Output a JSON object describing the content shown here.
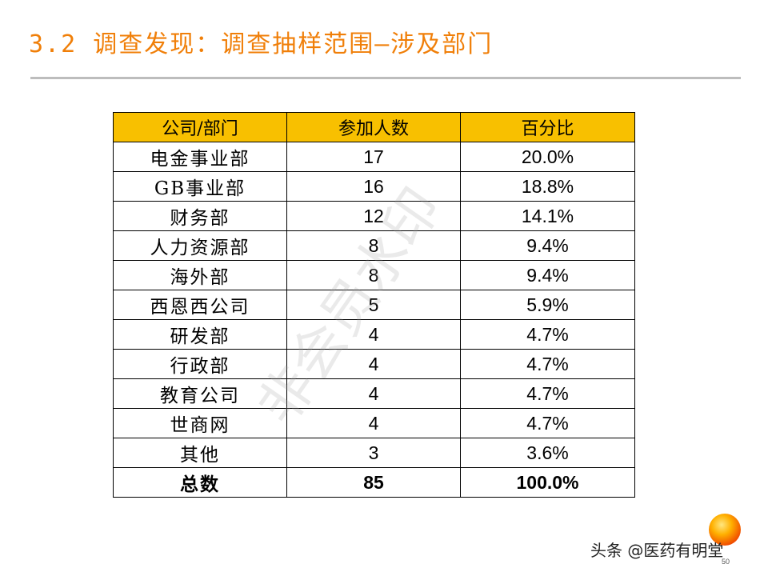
{
  "slide": {
    "title": "3.2 调查发现：调查抽样范围—涉及部门",
    "watermark": "非会员水印",
    "footer_credit": "头条 @医药有明堂",
    "page_number": "50"
  },
  "table": {
    "headers": [
      "公司/部门",
      "参加人数",
      "百分比"
    ],
    "rows": [
      {
        "dept": "电金事业部",
        "count": "17",
        "pct": "20.0%"
      },
      {
        "dept": "GB事业部",
        "count": "16",
        "pct": "18.8%"
      },
      {
        "dept": "财务部",
        "count": "12",
        "pct": "14.1%"
      },
      {
        "dept": "人力资源部",
        "count": "8",
        "pct": "9.4%"
      },
      {
        "dept": "海外部",
        "count": "8",
        "pct": "9.4%"
      },
      {
        "dept": "西恩西公司",
        "count": "5",
        "pct": "5.9%"
      },
      {
        "dept": "研发部",
        "count": "4",
        "pct": "4.7%"
      },
      {
        "dept": "行政部",
        "count": "4",
        "pct": "4.7%"
      },
      {
        "dept": "教育公司",
        "count": "4",
        "pct": "4.7%"
      },
      {
        "dept": "世商网",
        "count": "4",
        "pct": "4.7%"
      },
      {
        "dept": "其他",
        "count": "3",
        "pct": "3.6%"
      }
    ],
    "total": {
      "dept": "总数",
      "count": "85",
      "pct": "100.0%"
    }
  },
  "colors": {
    "title": "#f07f09",
    "header_fill": "#f8c000",
    "rule": "#bdbdbd"
  },
  "icons": {
    "logo": "orange-sphere-logo"
  }
}
